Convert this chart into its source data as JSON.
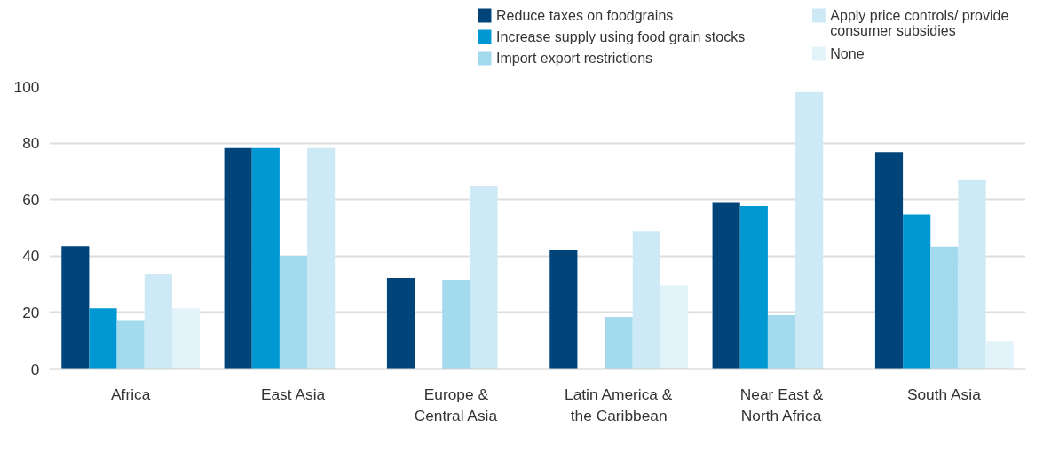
{
  "chart_data": {
    "type": "bar",
    "categories": [
      "Africa",
      "East Asia",
      "Europe & Central Asia",
      "Latin America & the Caribbean",
      "Near East & North Africa",
      "South Asia"
    ],
    "series": [
      {
        "name": "Reduce taxes on foodgrains",
        "color": "#00447a",
        "values": [
          43.5,
          78.2,
          32.2,
          42.2,
          58.8,
          76.8
        ]
      },
      {
        "name": "Increase supply using food grain stocks",
        "color": "#0098d3",
        "values": [
          21.5,
          78.2,
          null,
          null,
          57.7,
          54.7
        ]
      },
      {
        "name": "Import export restrictions",
        "color": "#a3daee",
        "values": [
          17.3,
          40.1,
          31.6,
          18.4,
          19,
          43.3
        ]
      },
      {
        "name": "Apply price controls/ provide consumer subsidies",
        "color": "#cce9f5",
        "values": [
          33.6,
          78.2,
          64.9,
          48.8,
          98,
          66.9
        ]
      },
      {
        "name": "None",
        "color": "#e2f3fa",
        "values": [
          21.5,
          null,
          null,
          29.6,
          null,
          9.8
        ]
      }
    ],
    "ylim": [
      0,
      100
    ],
    "yticks": [
      0,
      20,
      40,
      60,
      80,
      100
    ],
    "grid": "y",
    "legend": "top right"
  }
}
